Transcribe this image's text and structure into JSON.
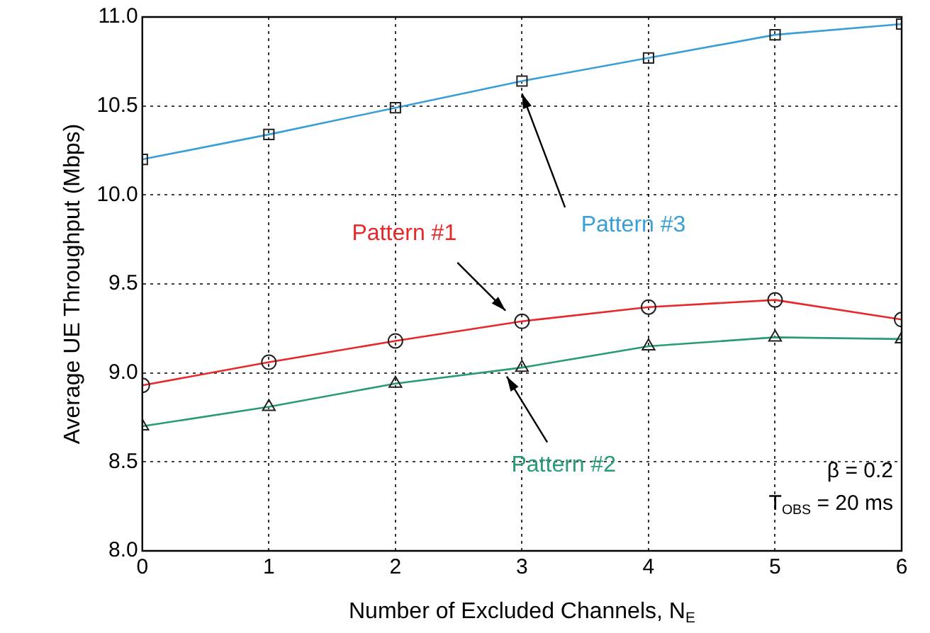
{
  "chart_data": {
    "type": "line",
    "xlabel": "Number of Excluded Channels, N$_{E}$",
    "ylabel": "Average UE Throughput (Mbps)",
    "x": [
      0,
      1,
      2,
      3,
      4,
      5,
      6
    ],
    "series": [
      {
        "name": "Pattern #3",
        "color": "#3a9fd6",
        "marker": "square",
        "values": [
          10.2,
          10.34,
          10.49,
          10.64,
          10.77,
          10.9,
          10.96
        ]
      },
      {
        "name": "Pattern #1",
        "color": "#e8282a",
        "marker": "circle",
        "values": [
          8.93,
          9.06,
          9.18,
          9.29,
          9.37,
          9.41,
          9.3
        ]
      },
      {
        "name": "Pattern #2",
        "color": "#2a9a7a",
        "marker": "triangle",
        "values": [
          8.7,
          8.81,
          8.94,
          9.03,
          9.15,
          9.2,
          9.19
        ]
      }
    ],
    "xlim": [
      0,
      6
    ],
    "xticks": [
      0,
      1,
      2,
      3,
      4,
      5,
      6
    ],
    "ylim": [
      8,
      11
    ],
    "yticks": [
      {
        "value": 8,
        "label": "8.0"
      },
      {
        "value": 8.5,
        "label": "8.5"
      },
      {
        "value": 9,
        "label": "9.0"
      },
      {
        "value": 9.5,
        "label": "9.5"
      },
      {
        "value": 10,
        "label": "10.0"
      },
      {
        "value": 10.5,
        "label": "10.5"
      },
      {
        "value": 11,
        "label": "11.0"
      }
    ],
    "grid": true,
    "legend": false,
    "annotations": [
      "β = 0.2",
      "T$_{OBS}$ = 20 ms"
    ]
  }
}
